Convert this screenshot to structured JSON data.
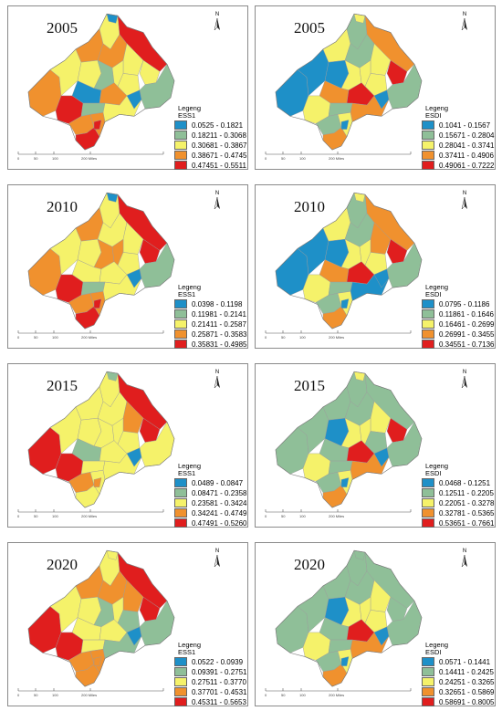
{
  "colors": [
    "#1e90c8",
    "#8fbf98",
    "#f5f26a",
    "#f0912e",
    "#e01e1e"
  ],
  "north_label": "N",
  "scale_labels": [
    "0",
    "50",
    "100",
    "200 Miles"
  ],
  "panels": [
    {
      "year": "2005",
      "legend": [
        "Legeng",
        "ESS1"
      ],
      "ranges": [
        "0.0525 - 0.1821",
        "0.18211 - 0.3068",
        "0.30681 - 0.3867",
        "0.38671 - 0.4745",
        "0.47451 - 0.5511"
      ]
    },
    {
      "year": "2005",
      "legend": [
        "Legeng",
        "ESDI"
      ],
      "ranges": [
        "0.1041 - 0.1567",
        "0.15671 - 0.2804",
        "0.28041 - 0.3741",
        "0.37411 - 0.4906",
        "0.49061 - 0.7222"
      ]
    },
    {
      "year": "2010",
      "legend": [
        "Legeng",
        "ESS1"
      ],
      "ranges": [
        "0.0398 - 0.1198",
        "0.11981 - 0.2141",
        "0.21411 - 0.2587",
        "0.25871 - 0.3583",
        "0.35831 - 0.4985"
      ]
    },
    {
      "year": "2010",
      "legend": [
        "Legeng",
        "ESDI"
      ],
      "ranges": [
        "0.0795 - 0.1186",
        "0.11861 - 0.1646",
        "0.16461 - 0.2699",
        "0.26991 - 0.3455",
        "0.34551 - 0.7136"
      ]
    },
    {
      "year": "2015",
      "legend": [
        "Legeng",
        "ESS1"
      ],
      "ranges": [
        "0.0489 - 0.0847",
        "0.08471 - 0.2358",
        "0.23581 - 0.3424",
        "0.34241 - 0.4749",
        "0.47491 - 0.5260"
      ]
    },
    {
      "year": "2015",
      "legend": [
        "Legeng",
        "ESDI"
      ],
      "ranges": [
        "0.0468 - 0.1251",
        "0.12511 - 0.2205",
        "0.22051 - 0.3278",
        "0.32781 - 0.5365",
        "0.53651 - 0.7661"
      ]
    },
    {
      "year": "2020",
      "legend": [
        "Legeng",
        "ESS1"
      ],
      "ranges": [
        "0.0522 - 0.0939",
        "0.09391 - 0.2751",
        "0.27511 - 0.3770",
        "0.37701 - 0.4531",
        "0.45311 - 0.5653"
      ]
    },
    {
      "year": "2020",
      "legend": [
        "Legeng",
        "ESDI"
      ],
      "ranges": [
        "0.0571 - 0.1441",
        "0.14411 - 0.2425",
        "0.24251 - 0.3265",
        "0.32651 - 0.5869",
        "0.58691 - 0.8005"
      ]
    }
  ],
  "maps": [
    [
      3,
      2,
      3,
      2,
      2,
      3,
      1,
      0,
      4,
      2,
      2,
      2,
      0,
      3,
      2,
      1,
      4,
      1,
      2,
      0,
      3,
      3,
      4,
      4
    ],
    [
      0,
      0,
      2,
      0,
      1,
      1,
      2,
      2,
      3,
      2,
      2,
      2,
      3,
      4,
      4,
      1,
      2,
      1,
      3,
      0,
      1,
      2,
      3,
      0
    ],
    [
      3,
      2,
      3,
      2,
      2,
      2,
      3,
      0,
      4,
      2,
      3,
      2,
      2,
      2,
      4,
      1,
      4,
      1,
      2,
      0,
      3,
      3,
      4,
      4
    ],
    [
      0,
      0,
      2,
      0,
      1,
      1,
      2,
      2,
      3,
      3,
      2,
      2,
      3,
      4,
      4,
      1,
      2,
      1,
      0,
      0,
      1,
      2,
      3,
      0
    ],
    [
      4,
      2,
      2,
      2,
      2,
      2,
      2,
      1,
      4,
      3,
      2,
      2,
      1,
      2,
      4,
      2,
      4,
      2,
      2,
      0,
      3,
      2,
      2,
      3
    ],
    [
      1,
      1,
      1,
      0,
      1,
      1,
      2,
      2,
      1,
      2,
      2,
      1,
      1,
      4,
      4,
      1,
      2,
      1,
      3,
      0,
      1,
      2,
      3,
      0
    ],
    [
      4,
      2,
      3,
      2,
      2,
      3,
      1,
      2,
      4,
      3,
      2,
      1,
      2,
      2,
      4,
      1,
      4,
      2,
      1,
      0,
      3,
      3,
      3,
      3
    ],
    [
      1,
      1,
      1,
      0,
      1,
      1,
      2,
      1,
      1,
      2,
      2,
      2,
      1,
      4,
      1,
      1,
      2,
      1,
      3,
      0,
      1,
      2,
      3,
      0
    ]
  ]
}
